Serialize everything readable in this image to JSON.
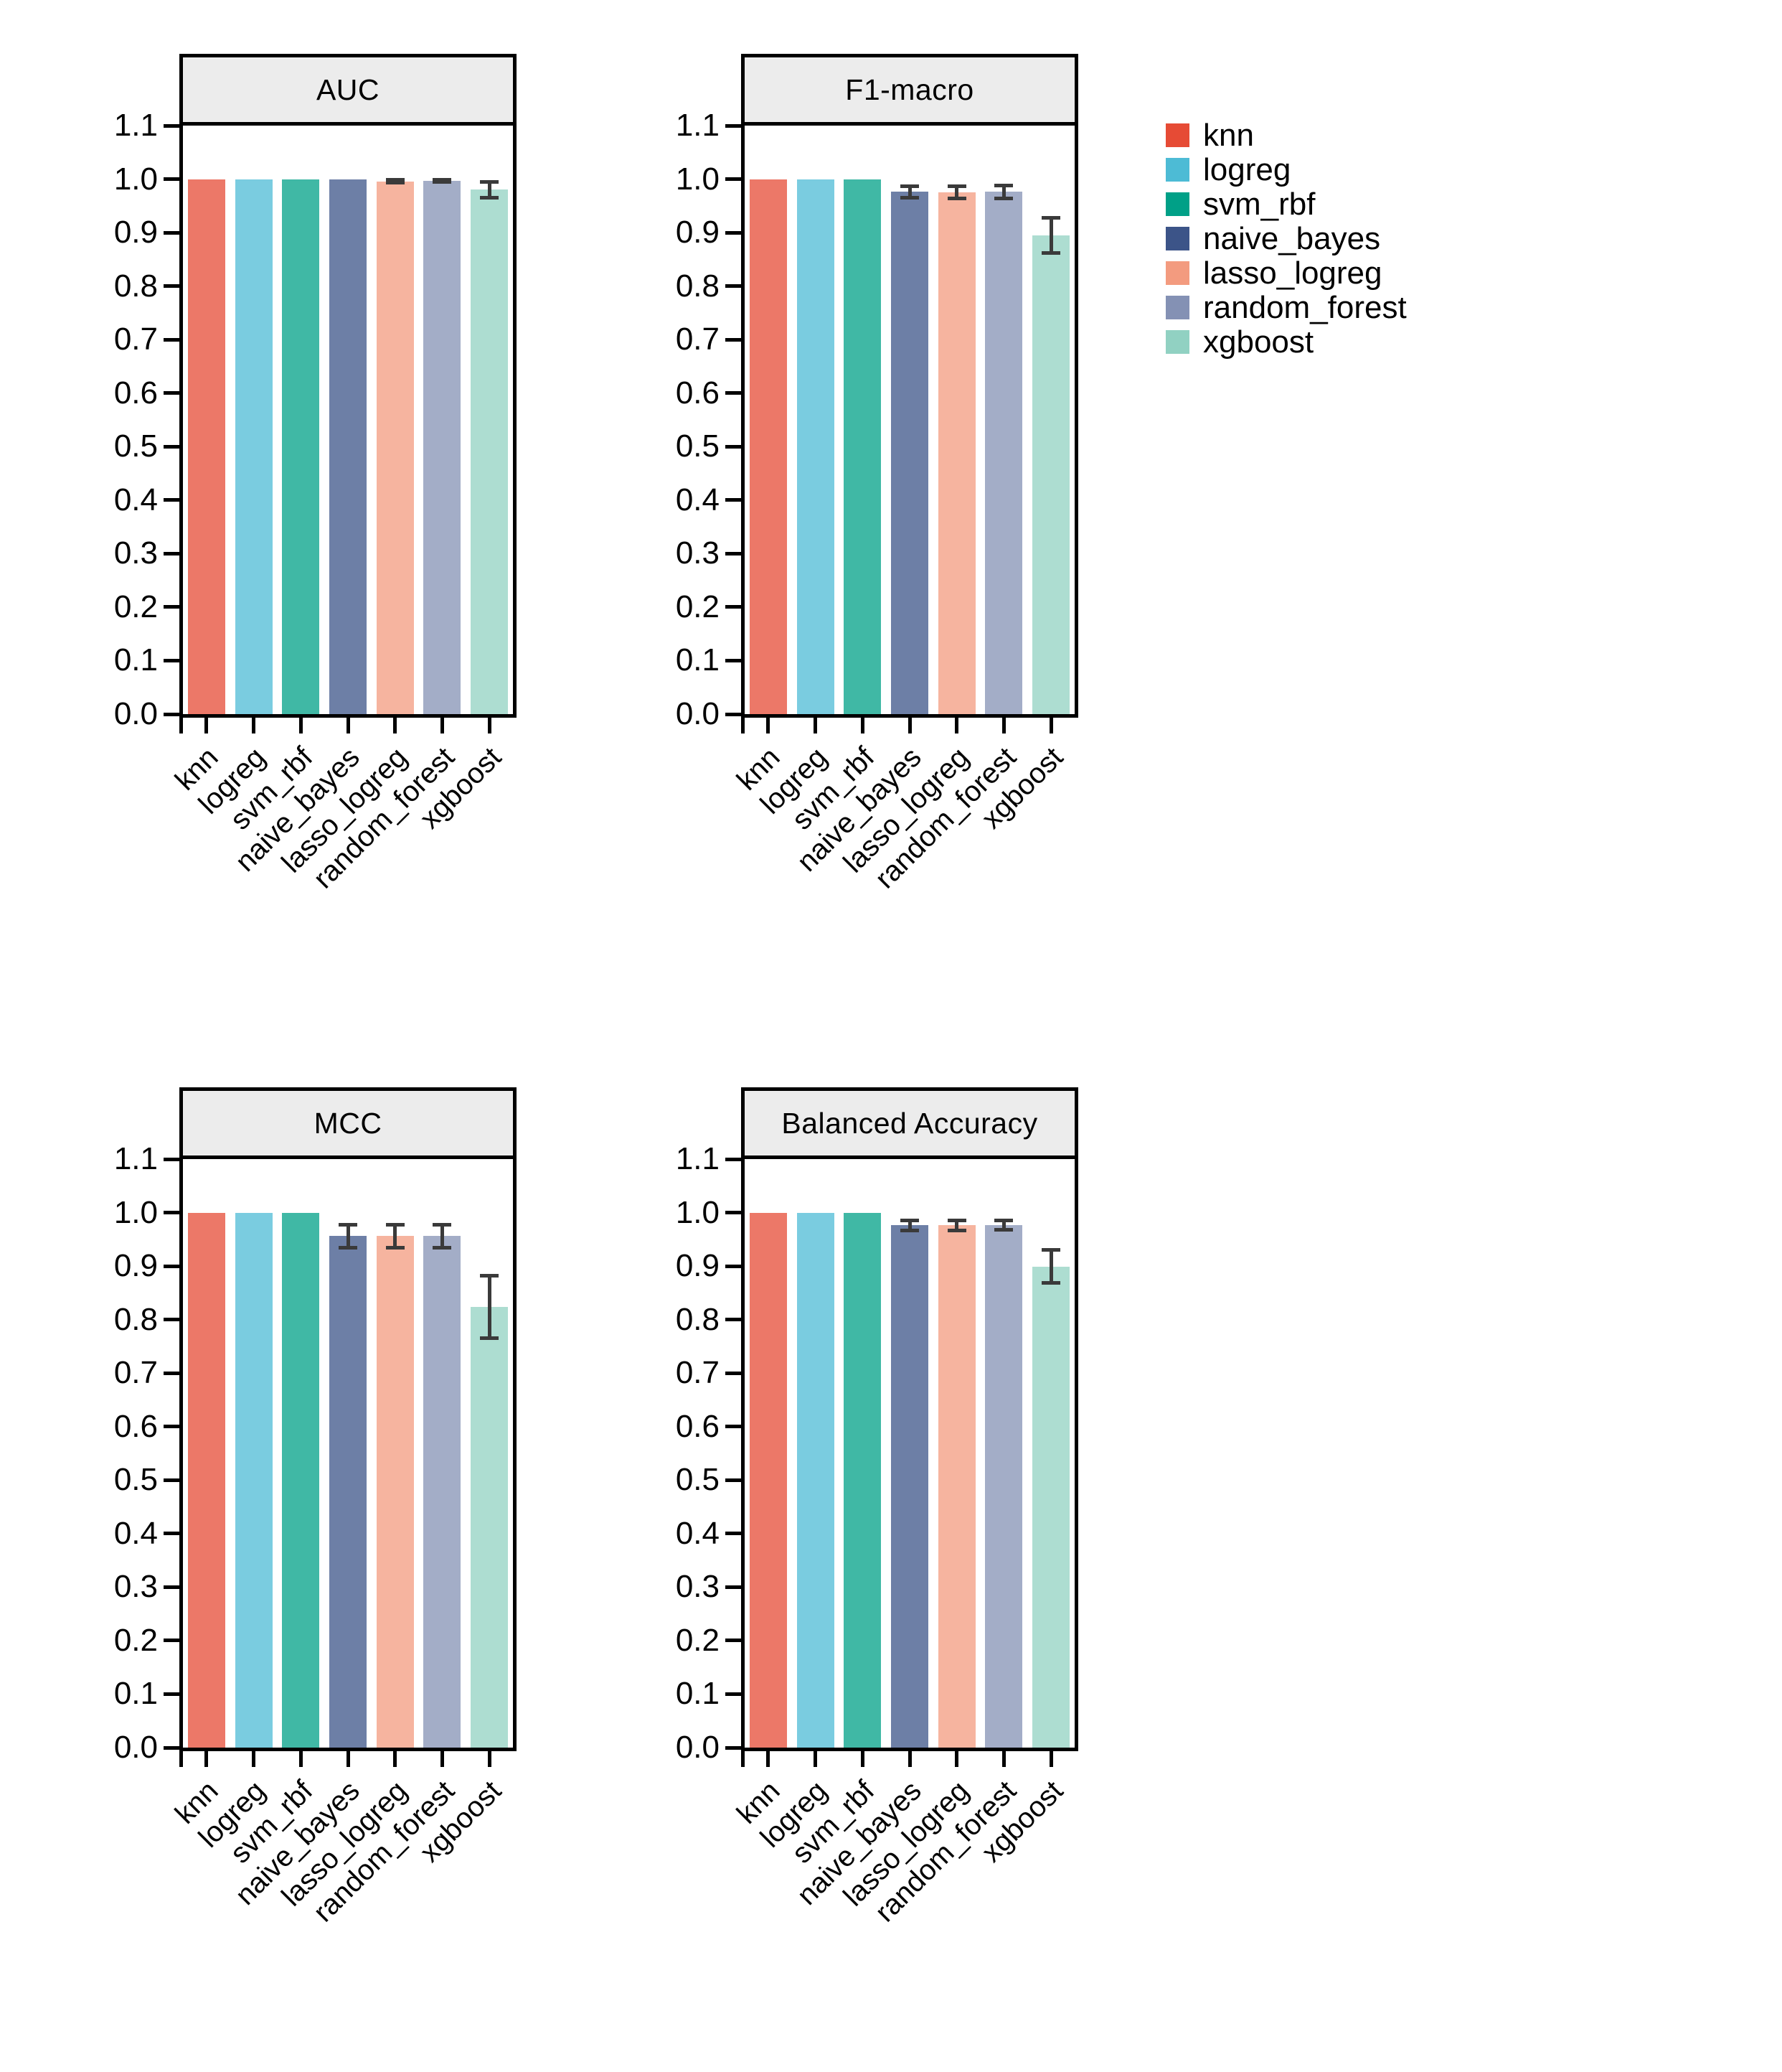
{
  "figure": {
    "description": "Faceted bar charts comparing classifier performance metrics",
    "background": "#ffffff"
  },
  "colors": {
    "strip_background": "#ececec",
    "axis": "#000000",
    "error_bar": "#3a3a3a",
    "bar_opacity": 0.75
  },
  "legend": {
    "position": "top-right",
    "items": [
      {
        "label": "knn",
        "color": "#E64B35"
      },
      {
        "label": "logreg",
        "color": "#4DBBD5"
      },
      {
        "label": "svm_rbf",
        "color": "#00A087"
      },
      {
        "label": "naive_bayes",
        "color": "#3C5488"
      },
      {
        "label": "lasso_logreg",
        "color": "#F39B7F"
      },
      {
        "label": "random_forest",
        "color": "#8491B4"
      },
      {
        "label": "xgboost",
        "color": "#91D1C2"
      }
    ]
  },
  "chart_data": [
    {
      "type": "bar",
      "title": "AUC",
      "categories": [
        "knn",
        "logreg",
        "svm_rbf",
        "naive_bayes",
        "lasso_logreg",
        "random_forest",
        "xgboost"
      ],
      "values": [
        1.0,
        1.0,
        1.0,
        1.0,
        0.996,
        0.997,
        0.98
      ],
      "errors": [
        0,
        0,
        0,
        0,
        0.006,
        0.005,
        0.018
      ],
      "ylim": [
        0,
        1.1
      ],
      "yticks": [
        "0.0",
        "0.1",
        "0.2",
        "0.3",
        "0.4",
        "0.5",
        "0.6",
        "0.7",
        "0.8",
        "0.9",
        "1.0",
        "1.1"
      ],
      "grid": false,
      "legend_position": "none"
    },
    {
      "type": "bar",
      "title": "F1-macro",
      "categories": [
        "knn",
        "logreg",
        "svm_rbf",
        "naive_bayes",
        "lasso_logreg",
        "random_forest",
        "xgboost"
      ],
      "values": [
        1.0,
        1.0,
        1.0,
        0.976,
        0.975,
        0.976,
        0.895
      ],
      "errors": [
        0,
        0,
        0,
        0.014,
        0.015,
        0.015,
        0.036
      ],
      "ylim": [
        0,
        1.1
      ],
      "yticks": [
        "0.0",
        "0.1",
        "0.2",
        "0.3",
        "0.4",
        "0.5",
        "0.6",
        "0.7",
        "0.8",
        "0.9",
        "1.0",
        "1.1"
      ],
      "grid": false,
      "legend_position": "none"
    },
    {
      "type": "bar",
      "title": "MCC",
      "categories": [
        "knn",
        "logreg",
        "svm_rbf",
        "naive_bayes",
        "lasso_logreg",
        "random_forest",
        "xgboost"
      ],
      "values": [
        1.0,
        1.0,
        1.0,
        0.956,
        0.956,
        0.956,
        0.824
      ],
      "errors": [
        0,
        0,
        0,
        0.025,
        0.025,
        0.025,
        0.062
      ],
      "ylim": [
        0,
        1.1
      ],
      "yticks": [
        "0.0",
        "0.1",
        "0.2",
        "0.3",
        "0.4",
        "0.5",
        "0.6",
        "0.7",
        "0.8",
        "0.9",
        "1.0",
        "1.1"
      ],
      "grid": false,
      "legend_position": "none"
    },
    {
      "type": "bar",
      "title": "Balanced Accuracy",
      "categories": [
        "knn",
        "logreg",
        "svm_rbf",
        "naive_bayes",
        "lasso_logreg",
        "random_forest",
        "xgboost"
      ],
      "values": [
        1.0,
        1.0,
        1.0,
        0.976,
        0.976,
        0.977,
        0.899
      ],
      "errors": [
        0,
        0,
        0,
        0.013,
        0.013,
        0.012,
        0.034
      ],
      "ylim": [
        0,
        1.1
      ],
      "yticks": [
        "0.0",
        "0.1",
        "0.2",
        "0.3",
        "0.4",
        "0.5",
        "0.6",
        "0.7",
        "0.8",
        "0.9",
        "1.0",
        "1.1"
      ],
      "grid": false,
      "legend_position": "none"
    }
  ]
}
